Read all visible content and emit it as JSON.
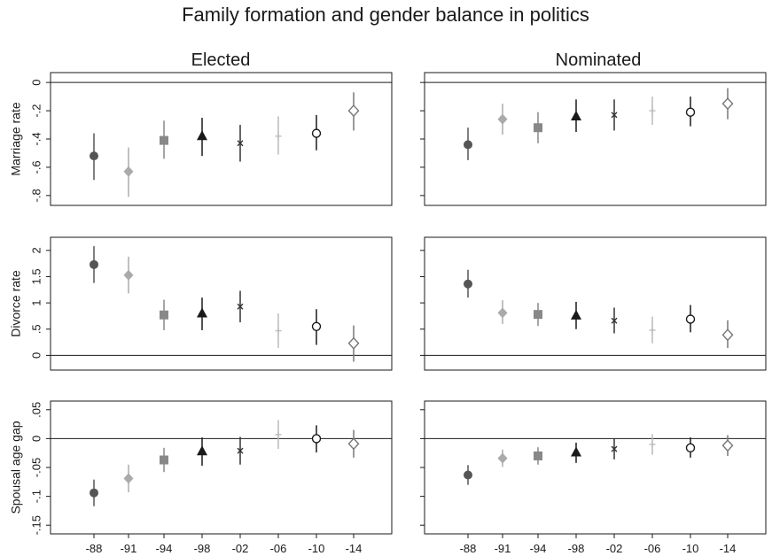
{
  "figure": {
    "title": "Family formation and gender balance in politics",
    "column_titles": [
      "Elected",
      "Nominated"
    ]
  },
  "chart_data": [
    {
      "type": "scatter",
      "panel": "Marriage rate / Elected",
      "ylabel": "Marriage rate",
      "ylim": [
        -0.87,
        0.07
      ],
      "yticks": [
        0,
        -0.2,
        -0.4,
        -0.6,
        -0.8
      ],
      "ytick_labels": [
        "0",
        "-.2",
        "-.4",
        "-.6",
        "-.8"
      ],
      "categories": [
        "-88",
        "-91",
        "-94",
        "-98",
        "-02",
        "-06",
        "-10",
        "-14"
      ],
      "markers": [
        "filled-circle",
        "filled-diamond",
        "filled-square",
        "filled-triangle",
        "x",
        "plus",
        "hollow-circle",
        "hollow-diamond"
      ],
      "colors": [
        "#555555",
        "#aaaaaa",
        "#888888",
        "#1a1a1a",
        "#333333",
        "#bbbbbb",
        "#1a1a1a",
        "#777777"
      ],
      "reference_line": 0,
      "grid": false,
      "points": [
        {
          "estimate": -0.52,
          "ci": [
            -0.69,
            -0.36
          ]
        },
        {
          "estimate": -0.63,
          "ci": [
            -0.81,
            -0.46
          ]
        },
        {
          "estimate": -0.41,
          "ci": [
            -0.54,
            -0.27
          ]
        },
        {
          "estimate": -0.38,
          "ci": [
            -0.52,
            -0.25
          ]
        },
        {
          "estimate": -0.43,
          "ci": [
            -0.56,
            -0.3
          ]
        },
        {
          "estimate": -0.38,
          "ci": [
            -0.51,
            -0.24
          ]
        },
        {
          "estimate": -0.36,
          "ci": [
            -0.48,
            -0.23
          ]
        },
        {
          "estimate": -0.2,
          "ci": [
            -0.34,
            -0.07
          ]
        }
      ]
    },
    {
      "type": "scatter",
      "panel": "Marriage rate / Nominated",
      "ylabel": "",
      "ylim": [
        -0.87,
        0.07
      ],
      "yticks": [
        0,
        -0.2,
        -0.4,
        -0.6,
        -0.8
      ],
      "ytick_labels": [],
      "categories": [
        "-88",
        "-91",
        "-94",
        "-98",
        "-02",
        "-06",
        "-10",
        "-14"
      ],
      "markers": [
        "filled-circle",
        "filled-diamond",
        "filled-square",
        "filled-triangle",
        "x",
        "plus",
        "hollow-circle",
        "hollow-diamond"
      ],
      "colors": [
        "#555555",
        "#aaaaaa",
        "#888888",
        "#1a1a1a",
        "#333333",
        "#bbbbbb",
        "#1a1a1a",
        "#777777"
      ],
      "reference_line": 0,
      "grid": false,
      "points": [
        {
          "estimate": -0.44,
          "ci": [
            -0.55,
            -0.32
          ]
        },
        {
          "estimate": -0.26,
          "ci": [
            -0.37,
            -0.15
          ]
        },
        {
          "estimate": -0.32,
          "ci": [
            -0.43,
            -0.21
          ]
        },
        {
          "estimate": -0.24,
          "ci": [
            -0.35,
            -0.12
          ]
        },
        {
          "estimate": -0.23,
          "ci": [
            -0.34,
            -0.12
          ]
        },
        {
          "estimate": -0.2,
          "ci": [
            -0.3,
            -0.1
          ]
        },
        {
          "estimate": -0.21,
          "ci": [
            -0.31,
            -0.1
          ]
        },
        {
          "estimate": -0.15,
          "ci": [
            -0.26,
            -0.04
          ]
        }
      ]
    },
    {
      "type": "scatter",
      "panel": "Divorce rate / Elected",
      "ylabel": "Divorce rate",
      "ylim": [
        -0.28,
        2.25
      ],
      "yticks": [
        0,
        0.5,
        1,
        1.5,
        2
      ],
      "ytick_labels": [
        "0",
        ".5",
        "1",
        "1.5",
        "2"
      ],
      "categories": [
        "-88",
        "-91",
        "-94",
        "-98",
        "-02",
        "-06",
        "-10",
        "-14"
      ],
      "markers": [
        "filled-circle",
        "filled-diamond",
        "filled-square",
        "filled-triangle",
        "x",
        "plus",
        "hollow-circle",
        "hollow-diamond"
      ],
      "colors": [
        "#555555",
        "#aaaaaa",
        "#888888",
        "#1a1a1a",
        "#333333",
        "#bbbbbb",
        "#1a1a1a",
        "#777777"
      ],
      "reference_line": 0,
      "grid": false,
      "points": [
        {
          "estimate": 1.73,
          "ci": [
            1.38,
            2.08
          ]
        },
        {
          "estimate": 1.53,
          "ci": [
            1.18,
            1.88
          ]
        },
        {
          "estimate": 0.77,
          "ci": [
            0.48,
            1.06
          ]
        },
        {
          "estimate": 0.8,
          "ci": [
            0.48,
            1.1
          ]
        },
        {
          "estimate": 0.93,
          "ci": [
            0.63,
            1.23
          ]
        },
        {
          "estimate": 0.47,
          "ci": [
            0.14,
            0.8
          ]
        },
        {
          "estimate": 0.55,
          "ci": [
            0.2,
            0.88
          ]
        },
        {
          "estimate": 0.23,
          "ci": [
            -0.12,
            0.57
          ]
        }
      ]
    },
    {
      "type": "scatter",
      "panel": "Divorce rate / Nominated",
      "ylabel": "",
      "ylim": [
        -0.28,
        2.25
      ],
      "yticks": [
        0,
        0.5,
        1,
        1.5,
        2
      ],
      "ytick_labels": [],
      "categories": [
        "-88",
        "-91",
        "-94",
        "-98",
        "-02",
        "-06",
        "-10",
        "-14"
      ],
      "markers": [
        "filled-circle",
        "filled-diamond",
        "filled-square",
        "filled-triangle",
        "x",
        "plus",
        "hollow-circle",
        "hollow-diamond"
      ],
      "colors": [
        "#555555",
        "#aaaaaa",
        "#888888",
        "#1a1a1a",
        "#333333",
        "#bbbbbb",
        "#1a1a1a",
        "#777777"
      ],
      "reference_line": 0,
      "grid": false,
      "points": [
        {
          "estimate": 1.36,
          "ci": [
            1.1,
            1.63
          ]
        },
        {
          "estimate": 0.81,
          "ci": [
            0.6,
            1.05
          ]
        },
        {
          "estimate": 0.78,
          "ci": [
            0.56,
            1.0
          ]
        },
        {
          "estimate": 0.76,
          "ci": [
            0.5,
            1.02
          ]
        },
        {
          "estimate": 0.66,
          "ci": [
            0.42,
            0.91
          ]
        },
        {
          "estimate": 0.48,
          "ci": [
            0.23,
            0.74
          ]
        },
        {
          "estimate": 0.69,
          "ci": [
            0.44,
            0.96
          ]
        },
        {
          "estimate": 0.39,
          "ci": [
            0.14,
            0.67
          ]
        }
      ]
    },
    {
      "type": "scatter",
      "panel": "Spousal age gap / Elected",
      "ylabel": "Spousal age gap",
      "ylim": [
        -0.165,
        0.065
      ],
      "yticks": [
        0.05,
        0,
        -0.05,
        -0.1,
        -0.15
      ],
      "ytick_labels": [
        ".05",
        "0",
        "-.05",
        "-.1",
        "-.15"
      ],
      "categories": [
        "-88",
        "-91",
        "-94",
        "-98",
        "-02",
        "-06",
        "-10",
        "-14"
      ],
      "markers": [
        "filled-circle",
        "filled-diamond",
        "filled-square",
        "filled-triangle",
        "x",
        "plus",
        "hollow-circle",
        "hollow-diamond"
      ],
      "colors": [
        "#555555",
        "#aaaaaa",
        "#888888",
        "#1a1a1a",
        "#333333",
        "#bbbbbb",
        "#1a1a1a",
        "#777777"
      ],
      "reference_line": 0,
      "grid": false,
      "points": [
        {
          "estimate": -0.094,
          "ci": [
            -0.117,
            -0.071
          ]
        },
        {
          "estimate": -0.069,
          "ci": [
            -0.093,
            -0.045
          ]
        },
        {
          "estimate": -0.037,
          "ci": [
            -0.058,
            -0.016
          ]
        },
        {
          "estimate": -0.022,
          "ci": [
            -0.047,
            0.002
          ]
        },
        {
          "estimate": -0.021,
          "ci": [
            -0.045,
            0.003
          ]
        },
        {
          "estimate": 0.007,
          "ci": [
            -0.018,
            0.032
          ]
        },
        {
          "estimate": 0.0,
          "ci": [
            -0.024,
            0.023
          ]
        },
        {
          "estimate": -0.009,
          "ci": [
            -0.033,
            0.015
          ]
        }
      ]
    },
    {
      "type": "scatter",
      "panel": "Spousal age gap / Nominated",
      "ylabel": "",
      "ylim": [
        -0.165,
        0.065
      ],
      "yticks": [
        0.05,
        0,
        -0.05,
        -0.1,
        -0.15
      ],
      "ytick_labels": [],
      "categories": [
        "-88",
        "-91",
        "-94",
        "-98",
        "-02",
        "-06",
        "-10",
        "-14"
      ],
      "markers": [
        "filled-circle",
        "filled-diamond",
        "filled-square",
        "filled-triangle",
        "x",
        "plus",
        "hollow-circle",
        "hollow-diamond"
      ],
      "colors": [
        "#555555",
        "#aaaaaa",
        "#888888",
        "#1a1a1a",
        "#333333",
        "#bbbbbb",
        "#1a1a1a",
        "#777777"
      ],
      "reference_line": 0,
      "grid": false,
      "points": [
        {
          "estimate": -0.063,
          "ci": [
            -0.08,
            -0.046
          ]
        },
        {
          "estimate": -0.034,
          "ci": [
            -0.049,
            -0.019
          ]
        },
        {
          "estimate": -0.03,
          "ci": [
            -0.045,
            -0.015
          ]
        },
        {
          "estimate": -0.024,
          "ci": [
            -0.042,
            -0.007
          ]
        },
        {
          "estimate": -0.018,
          "ci": [
            -0.036,
            0.0
          ]
        },
        {
          "estimate": -0.01,
          "ci": [
            -0.028,
            0.008
          ]
        },
        {
          "estimate": -0.016,
          "ci": [
            -0.033,
            0.002
          ]
        },
        {
          "estimate": -0.012,
          "ci": [
            -0.03,
            0.006
          ]
        }
      ]
    }
  ]
}
